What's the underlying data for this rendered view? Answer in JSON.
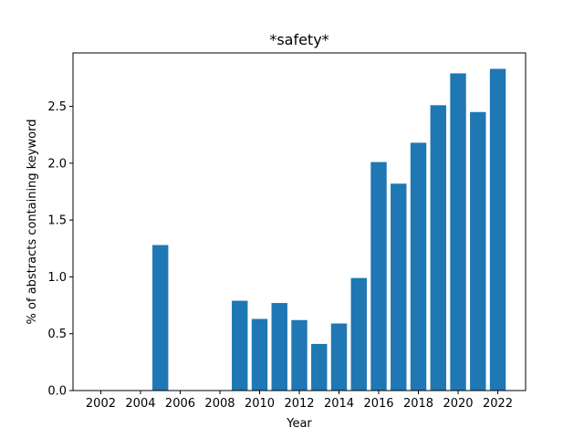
{
  "chart_data": {
    "type": "bar",
    "title": "*safety*",
    "xlabel": "Year",
    "ylabel": "% of abstracts containing keyword",
    "x": [
      2005,
      2009,
      2010,
      2011,
      2012,
      2013,
      2014,
      2015,
      2016,
      2017,
      2018,
      2019,
      2020,
      2021,
      2022
    ],
    "values": [
      1.28,
      0.79,
      0.63,
      0.77,
      0.62,
      0.41,
      0.59,
      0.99,
      2.01,
      1.82,
      2.18,
      2.51,
      2.79,
      2.45,
      2.83
    ],
    "xlim": [
      2000.6,
      2023.4
    ],
    "ylim": [
      0,
      2.97
    ],
    "xticks": [
      2002,
      2004,
      2006,
      2008,
      2010,
      2012,
      2014,
      2016,
      2018,
      2020,
      2022
    ],
    "yticks": [
      0.0,
      0.5,
      1.0,
      1.5,
      2.0,
      2.5
    ],
    "ytick_labels": [
      "0.0",
      "0.5",
      "1.0",
      "1.5",
      "2.0",
      "2.5"
    ],
    "bar_color": "#1f77b4",
    "grid": false,
    "legend": false
  }
}
